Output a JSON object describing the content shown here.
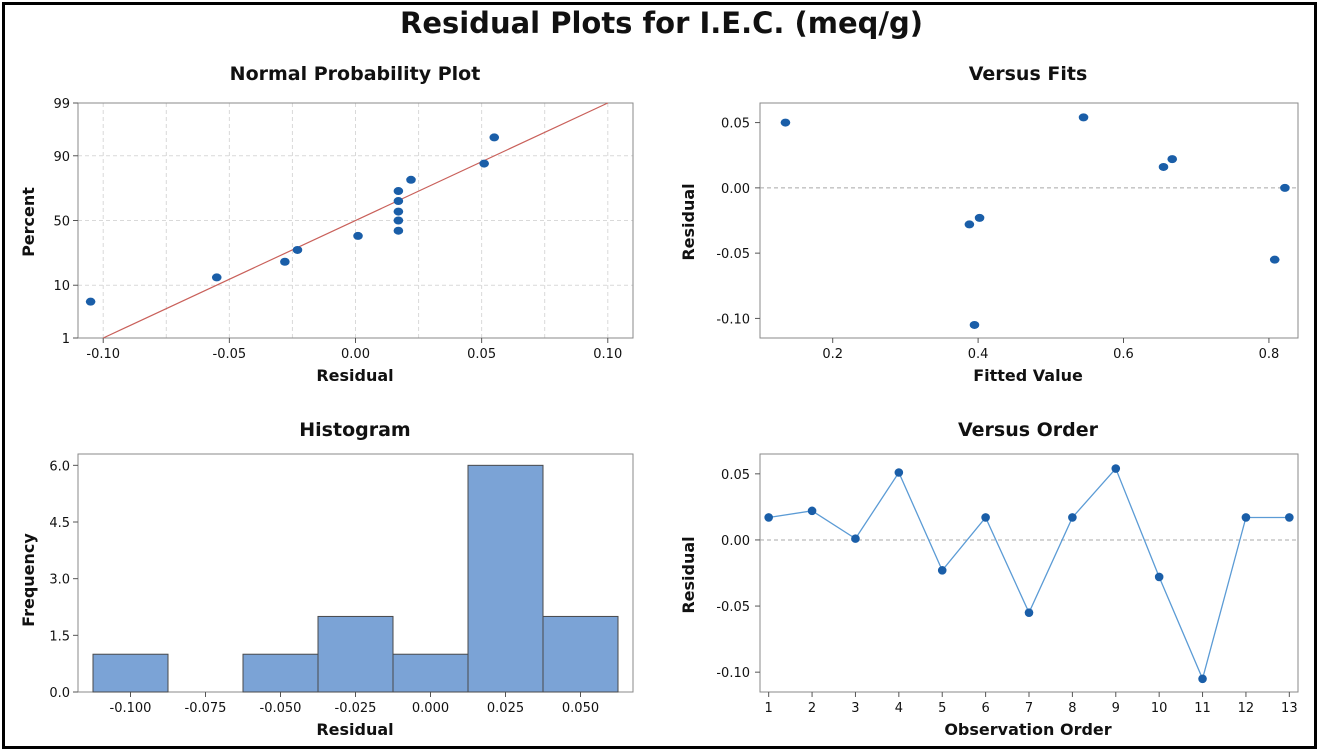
{
  "figure": {
    "title": "Residual Plots for I.E.C. (meq/g)"
  },
  "colors": {
    "point": "#1a5ea8",
    "fit_line": "#c9605a",
    "bar_fill": "#7ba3d6",
    "bar_edge": "#4a4a4a",
    "order_line": "#5b9bd5",
    "grid": "#d9d9d9",
    "zero_line": "#a8a8a8"
  },
  "chart_data": [
    {
      "id": "normal",
      "type": "scatter",
      "title": "Normal Probability Plot",
      "xlabel": "Residual",
      "ylabel": "Percent",
      "y_scale": "normal-probability",
      "xlim": [
        -0.11,
        0.11
      ],
      "ylim": [
        1,
        99
      ],
      "xticks": [
        -0.1,
        -0.05,
        0.0,
        0.05,
        0.1
      ],
      "xtick_labels": [
        "-0.10",
        "-0.05",
        "0.00",
        "0.05",
        "0.10"
      ],
      "yticks": [
        1,
        10,
        50,
        90,
        99
      ],
      "ytick_labels": [
        "1",
        "10",
        "50",
        "90",
        "99"
      ],
      "grid": true,
      "points": [
        {
          "x": -0.105,
          "y": 5.4
        },
        {
          "x": -0.055,
          "y": 13.0
        },
        {
          "x": -0.028,
          "y": 20.7
        },
        {
          "x": -0.023,
          "y": 28.0
        },
        {
          "x": 0.001,
          "y": 38.0
        },
        {
          "x": 0.017,
          "y": 42.0
        },
        {
          "x": 0.017,
          "y": 50.0
        },
        {
          "x": 0.017,
          "y": 57.0
        },
        {
          "x": 0.017,
          "y": 65.0
        },
        {
          "x": 0.017,
          "y": 72.0
        },
        {
          "x": 0.022,
          "y": 79.0
        },
        {
          "x": 0.051,
          "y": 87.0
        },
        {
          "x": 0.055,
          "y": 95.0
        }
      ],
      "fit_line": [
        {
          "x": -0.1,
          "y": 1.0
        },
        {
          "x": 0.1,
          "y": 99.0
        }
      ]
    },
    {
      "id": "fits",
      "type": "scatter",
      "title": "Versus Fits",
      "xlabel": "Fitted Value",
      "ylabel": "Residual",
      "xlim": [
        0.1,
        0.84
      ],
      "ylim": [
        -0.115,
        0.065
      ],
      "xticks": [
        0.2,
        0.4,
        0.6,
        0.8
      ],
      "xtick_labels": [
        "0.2",
        "0.4",
        "0.6",
        "0.8"
      ],
      "yticks": [
        -0.1,
        -0.05,
        0.0,
        0.05
      ],
      "ytick_labels": [
        "-0.10",
        "-0.05",
        "0.00",
        "0.05"
      ],
      "reference_line": 0,
      "points": [
        {
          "x": 0.135,
          "y": 0.05
        },
        {
          "x": 0.388,
          "y": -0.028
        },
        {
          "x": 0.395,
          "y": -0.105
        },
        {
          "x": 0.402,
          "y": -0.023
        },
        {
          "x": 0.545,
          "y": 0.054
        },
        {
          "x": 0.655,
          "y": 0.016
        },
        {
          "x": 0.667,
          "y": 0.022
        },
        {
          "x": 0.808,
          "y": -0.055
        },
        {
          "x": 0.822,
          "y": 0.0
        }
      ]
    },
    {
      "id": "hist",
      "type": "bar",
      "title": "Histogram",
      "xlabel": "Residual",
      "ylabel": "Frequency",
      "bin_width": 0.025,
      "xlim": [
        -0.1175,
        0.0675
      ],
      "ylim": [
        0,
        6.3
      ],
      "xticks": [
        -0.1,
        -0.075,
        -0.05,
        -0.025,
        0.0,
        0.025,
        0.05
      ],
      "xtick_labels": [
        "-0.100",
        "-0.075",
        "-0.050",
        "-0.025",
        "0.000",
        "0.025",
        "0.050"
      ],
      "yticks": [
        0.0,
        1.5,
        3.0,
        4.5,
        6.0
      ],
      "ytick_labels": [
        "0.0",
        "1.5",
        "3.0",
        "4.5",
        "6.0"
      ],
      "categories": [
        "-0.100",
        "-0.075",
        "-0.050",
        "-0.025",
        "0.000",
        "0.025",
        "0.050"
      ],
      "values": [
        1,
        0,
        1,
        2,
        1,
        6,
        2
      ]
    },
    {
      "id": "order",
      "type": "line",
      "title": "Versus Order",
      "xlabel": "Observation Order",
      "ylabel": "Residual",
      "xlim": [
        0.8,
        13.2
      ],
      "ylim": [
        -0.115,
        0.065
      ],
      "xticks": [
        1,
        2,
        3,
        4,
        5,
        6,
        7,
        8,
        9,
        10,
        11,
        12,
        13
      ],
      "xtick_labels": [
        "1",
        "2",
        "3",
        "4",
        "5",
        "6",
        "7",
        "8",
        "9",
        "10",
        "11",
        "12",
        "13"
      ],
      "yticks": [
        -0.1,
        -0.05,
        0.0,
        0.05
      ],
      "ytick_labels": [
        "-0.10",
        "-0.05",
        "0.00",
        "0.05"
      ],
      "reference_line": 0,
      "x": [
        1,
        2,
        3,
        4,
        5,
        6,
        7,
        8,
        9,
        10,
        11,
        12,
        13
      ],
      "values": [
        0.017,
        0.022,
        0.001,
        0.051,
        -0.023,
        0.017,
        -0.055,
        0.017,
        0.054,
        -0.028,
        -0.105,
        0.017,
        0.017
      ]
    }
  ]
}
